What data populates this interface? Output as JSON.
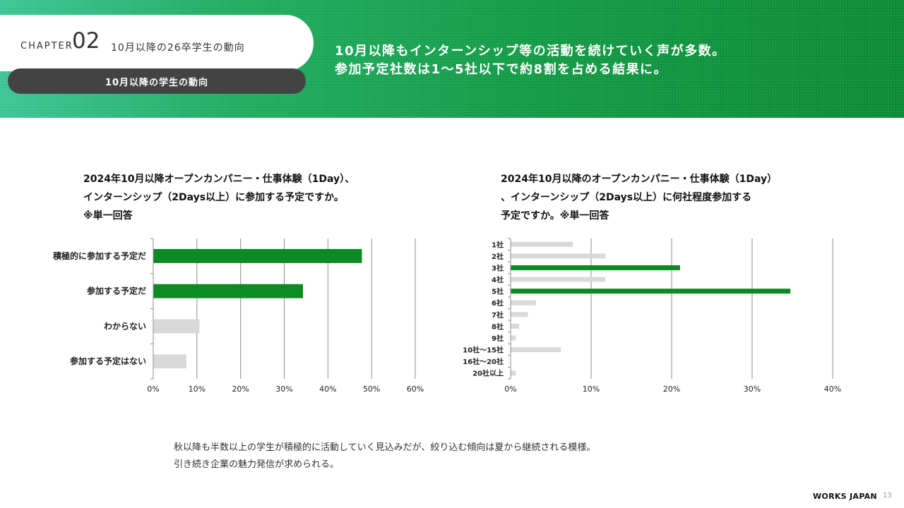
{
  "header": {
    "chapter_label": "CHAPTER",
    "chapter_number": "02",
    "chapter_title": "10月以降の26卒学生の動向",
    "section_label": "10月以降の学生の動向",
    "headline_lines": [
      "10月以降もインターンシップ等の活動を続けていく声が多数。",
      "参加予定社数は1～5社以下で約8割を占める結果に。"
    ]
  },
  "left_question_lines": [
    "2024年10月以降オープンカンパニー・仕事体験（1Day）、",
    "インターンシップ（2Days以上）に参加する予定ですか。",
    "※単一回答"
  ],
  "right_question_lines": [
    "2024年10月以降のオープンカンパニー・仕事体験（1Day）",
    "、インターンシップ（2Days以上）に何社程度参加する",
    "予定ですか。※単一回答"
  ],
  "colors": {
    "highlight": "#0d8a23",
    "other": "#d9d9d9",
    "grid": "#8c8c8c"
  },
  "chart_data": [
    {
      "type": "bar",
      "orientation": "horizontal",
      "categories": [
        "積極的に参加する予定だ",
        "参加する予定だ",
        "わからない",
        "参加する予定はない"
      ],
      "values": [
        47.7,
        34.2,
        10.5,
        7.5
      ],
      "highlight": [
        true,
        true,
        false,
        false
      ],
      "xlim": [
        0,
        60
      ],
      "ticks": [
        "0%",
        "10%",
        "20%",
        "30%",
        "40%",
        "50%",
        "60%"
      ],
      "grid": true
    },
    {
      "type": "bar",
      "orientation": "horizontal",
      "categories": [
        "1社",
        "2社",
        "3社",
        "4社",
        "5社",
        "6社",
        "7社",
        "8社",
        "9社",
        "10社～15社",
        "16社～20社",
        "20社以上"
      ],
      "values": [
        7.7,
        11.7,
        21.0,
        11.7,
        34.7,
        3.1,
        2.1,
        1.0,
        0.6,
        6.2,
        0.0,
        0.6
      ],
      "highlight": [
        false,
        false,
        true,
        false,
        true,
        false,
        false,
        false,
        false,
        false,
        false,
        false
      ],
      "xlim": [
        0,
        40
      ],
      "ticks": [
        "0%",
        "10%",
        "20%",
        "30%",
        "40%"
      ],
      "grid": true
    }
  ],
  "summary_lines": [
    "秋以降も半数以上の学生が積極的に活動していく見込みだが、絞り込む傾向は夏から継続される模様。",
    "引き続き企業の魅力発信が求められる。"
  ],
  "footer": {
    "brand": "WORKS JAPAN",
    "page_number": "13"
  }
}
